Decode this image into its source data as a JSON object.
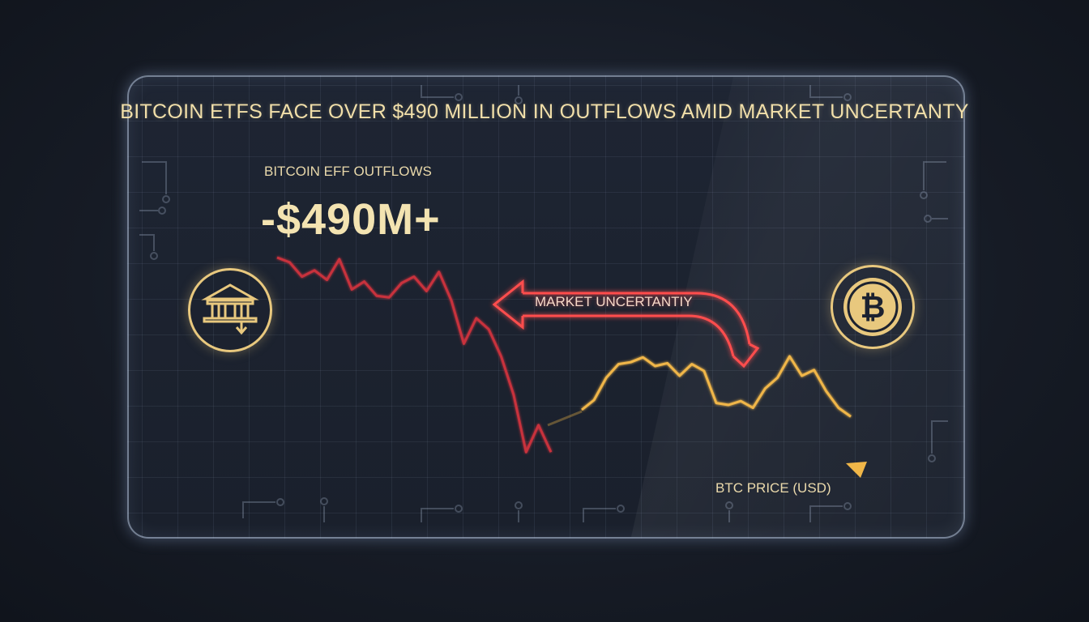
{
  "title": "BITCOIN ETFS FACE OVER $490 MILLION IN OUTFLOWS AMID MARKET UNCERTANTY",
  "outflow_label": "BITCOIN EFF OUTFLOWS",
  "outflow_value": "-$490M+",
  "annotation": "MARKET UNCERTANTIY",
  "btc_label": "BTC PRICE (USD)",
  "icons": {
    "left": "bank-outflow-icon",
    "right": "bitcoin-coin-icon"
  },
  "colors": {
    "outflow_line": "#c8323c",
    "btc_line": "#f0b648",
    "arrow": "#ff4e4e",
    "accent_text": "#f1dfa9",
    "icon": "#e8c87e"
  },
  "chart_data": [
    {
      "type": "line",
      "name": "ETF outflows",
      "title": "",
      "xlabel": "",
      "ylabel": "",
      "values": [
        100,
        97,
        88,
        92,
        86,
        99,
        80,
        85,
        76,
        75,
        84,
        88,
        79,
        91,
        73,
        46,
        62,
        55,
        38,
        14,
        -22,
        -5,
        -22
      ]
    },
    {
      "type": "line",
      "name": "BTC PRICE (USD)",
      "title": "",
      "xlabel": "",
      "ylabel": "",
      "values": [
        45,
        55,
        78,
        92,
        94,
        99,
        90,
        93,
        80,
        92,
        85,
        52,
        50,
        54,
        47,
        67,
        78,
        100,
        80,
        86,
        64,
        47,
        38
      ]
    }
  ]
}
